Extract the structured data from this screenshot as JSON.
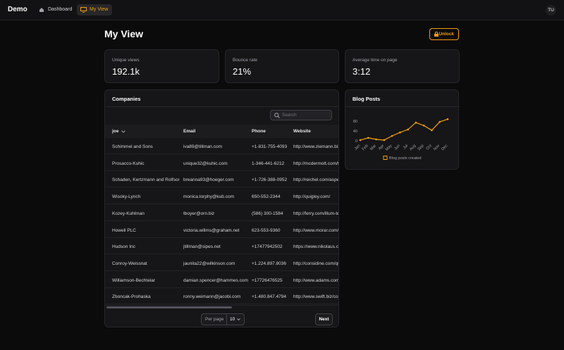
{
  "nav": {
    "brand": "Demo",
    "links": [
      "Dashboard",
      "My View"
    ],
    "avatar": "TU"
  },
  "header": {
    "title": "My View",
    "button": "Unlock"
  },
  "stats": [
    {
      "label": "Unique views",
      "value": "192.1k"
    },
    {
      "label": "Bounce rate",
      "value": "21%"
    },
    {
      "label": "Average time on page",
      "value": "3:12"
    }
  ],
  "table": {
    "title": "Companies",
    "search_placeholder": "Search",
    "columns": [
      "joe",
      "Email",
      "Phone",
      "Website"
    ],
    "rows": [
      [
        "Schimmel and Sons",
        "iva89@tillman.com",
        "+1-831-755-4093",
        "http://www.ziemann.biz"
      ],
      [
        "Prosacco-Kuhic",
        "unique32@kuhic.com",
        "1-346-441-6212",
        "http://mcdermott.com/t"
      ],
      [
        "Schaden, Kertzmann and Rolfson",
        "breanna93@hoeger.com",
        "+1-726-388-0952",
        "http://reichel.com/aspe"
      ],
      [
        "Wisoky-Lynch",
        "monica.torphy@kub.com",
        "650-552-2344",
        "http://quigley.com/"
      ],
      [
        "Kozey-Kuhlman",
        "tboyer@orn.biz",
        "(586) 300-1584",
        "http://ferry.com/illum-te"
      ],
      [
        "Howell PLC",
        "victoria.willms@graham.net",
        "623-553-9360",
        "http://www.morar.com/"
      ],
      [
        "Hudson Inc",
        "jtillman@sipes.net",
        "+17477942502",
        "https://www.nikolaus.co"
      ],
      [
        "Conroy-Weissnat",
        "jaunita22@wilkinson.com",
        "+1.224.897.8036",
        "http://considine.com/qu"
      ],
      [
        "Williamson-Bechtelar",
        "damian.spencer@hammes.com",
        "+17726476525",
        "http://www.adams.com"
      ],
      [
        "Zboncak-Prohaska",
        "ronny.weimann@jacobi.com",
        "+1.480.847.4794",
        "http://www.swift.biz/co"
      ]
    ],
    "per_page_label": "Per page",
    "per_page": "10",
    "next": "Next"
  },
  "chart_data": {
    "type": "line",
    "title": "Blog Posts",
    "categories": [
      "Jan",
      "Feb",
      "Mar",
      "Apr",
      "May",
      "Jun",
      "Jul",
      "Aug",
      "Sep",
      "Oct",
      "Nov",
      "Dec"
    ],
    "series": [
      {
        "name": "Blog posts created",
        "color": "#f59e0b",
        "values": [
          3,
          12,
          6,
          3,
          20,
          34,
          46,
          74,
          62,
          43,
          77,
          88
        ]
      }
    ],
    "ylim": [
      0,
      120
    ],
    "yticks": [
      0,
      40,
      80
    ]
  }
}
